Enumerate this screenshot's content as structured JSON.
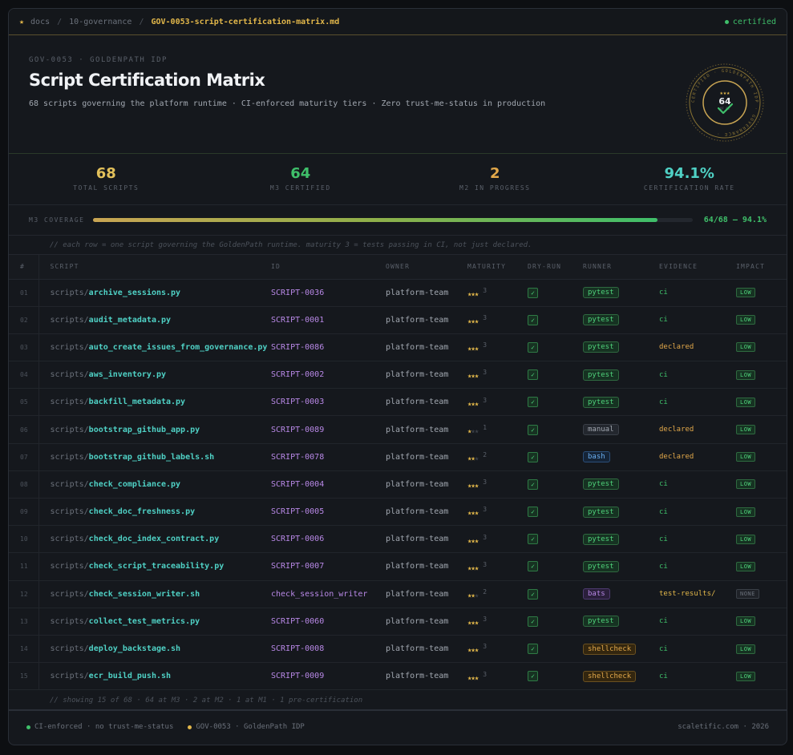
{
  "breadcrumb": {
    "items": [
      "docs",
      "10-governance"
    ],
    "current": "GOV-0053-script-certification-matrix.md",
    "status": "certified"
  },
  "header": {
    "eyebrow": "GOV-0053 · GOLDENPATH IDP",
    "title": "Script Certification Matrix",
    "subtitle": "68 scripts governing the platform runtime · CI-enforced maturity tiers · Zero trust-me-status in production"
  },
  "seal": {
    "ring_text": "CERTIFIED · GOLDENPATH IDP · GOVERNANCE ·",
    "stars": "★★★",
    "count": "64",
    "of": "OF 68"
  },
  "stats": [
    {
      "value": "68",
      "label": "TOTAL SCRIPTS",
      "color": "#e2c05a"
    },
    {
      "value": "64",
      "label": "M3 CERTIFIED",
      "color": "#3fbf6a"
    },
    {
      "value": "2",
      "label": "M2 IN PROGRESS",
      "color": "#e2a84a"
    },
    {
      "value": "94.1%",
      "label": "CERTIFICATION RATE",
      "color": "#4fd1c5"
    }
  ],
  "coverage": {
    "label": "M3 COVERAGE",
    "fraction": 0.941,
    "value_text": "64/68 — 94.1%"
  },
  "note": "// each row = one script governing the GoldenPath runtime. maturity 3 = tests passing in CI, not just declared.",
  "columns": [
    "#",
    "SCRIPT",
    "ID",
    "OWNER",
    "MATURITY",
    "DRY-RUN",
    "RUNNER",
    "EVIDENCE",
    "IMPACT"
  ],
  "rows": [
    {
      "n": "01",
      "prefix": "scripts/",
      "file": "archive_sessions.py",
      "id": "SCRIPT-0036",
      "owner": "platform-team",
      "maturity": 3,
      "runner": "pytest",
      "evidence": "ci",
      "impact": "LOW"
    },
    {
      "n": "02",
      "prefix": "scripts/",
      "file": "audit_metadata.py",
      "id": "SCRIPT-0001",
      "owner": "platform-team",
      "maturity": 3,
      "runner": "pytest",
      "evidence": "ci",
      "impact": "LOW"
    },
    {
      "n": "03",
      "prefix": "scripts/",
      "file": "auto_create_issues_from_governance.py",
      "id": "SCRIPT-0086",
      "owner": "platform-team",
      "maturity": 3,
      "runner": "pytest",
      "evidence": "declared",
      "impact": "LOW"
    },
    {
      "n": "04",
      "prefix": "scripts/",
      "file": "aws_inventory.py",
      "id": "SCRIPT-0002",
      "owner": "platform-team",
      "maturity": 3,
      "runner": "pytest",
      "evidence": "ci",
      "impact": "LOW"
    },
    {
      "n": "05",
      "prefix": "scripts/",
      "file": "backfill_metadata.py",
      "id": "SCRIPT-0003",
      "owner": "platform-team",
      "maturity": 3,
      "runner": "pytest",
      "evidence": "ci",
      "impact": "LOW"
    },
    {
      "n": "06",
      "prefix": "scripts/",
      "file": "bootstrap_github_app.py",
      "id": "SCRIPT-0089",
      "owner": "platform-team",
      "maturity": 1,
      "runner": "manual",
      "evidence": "declared",
      "impact": "LOW"
    },
    {
      "n": "07",
      "prefix": "scripts/",
      "file": "bootstrap_github_labels.sh",
      "id": "SCRIPT-0078",
      "owner": "platform-team",
      "maturity": 2,
      "runner": "bash",
      "evidence": "declared",
      "impact": "LOW"
    },
    {
      "n": "08",
      "prefix": "scripts/",
      "file": "check_compliance.py",
      "id": "SCRIPT-0004",
      "owner": "platform-team",
      "maturity": 3,
      "runner": "pytest",
      "evidence": "ci",
      "impact": "LOW"
    },
    {
      "n": "09",
      "prefix": "scripts/",
      "file": "check_doc_freshness.py",
      "id": "SCRIPT-0005",
      "owner": "platform-team",
      "maturity": 3,
      "runner": "pytest",
      "evidence": "ci",
      "impact": "LOW"
    },
    {
      "n": "10",
      "prefix": "scripts/",
      "file": "check_doc_index_contract.py",
      "id": "SCRIPT-0006",
      "owner": "platform-team",
      "maturity": 3,
      "runner": "pytest",
      "evidence": "ci",
      "impact": "LOW"
    },
    {
      "n": "11",
      "prefix": "scripts/",
      "file": "check_script_traceability.py",
      "id": "SCRIPT-0007",
      "owner": "platform-team",
      "maturity": 3,
      "runner": "pytest",
      "evidence": "ci",
      "impact": "LOW"
    },
    {
      "n": "12",
      "prefix": "scripts/",
      "file": "check_session_writer.sh",
      "id": "check_session_writer",
      "owner": "platform-team",
      "maturity": 2,
      "runner": "bats",
      "evidence": "test-results/",
      "impact": "NONE"
    },
    {
      "n": "13",
      "prefix": "scripts/",
      "file": "collect_test_metrics.py",
      "id": "SCRIPT-0060",
      "owner": "platform-team",
      "maturity": 3,
      "runner": "pytest",
      "evidence": "ci",
      "impact": "LOW"
    },
    {
      "n": "14",
      "prefix": "scripts/",
      "file": "deploy_backstage.sh",
      "id": "SCRIPT-0008",
      "owner": "platform-team",
      "maturity": 3,
      "runner": "shellcheck",
      "evidence": "ci",
      "impact": "LOW"
    },
    {
      "n": "15",
      "prefix": "scripts/",
      "file": "ecr_build_push.sh",
      "id": "SCRIPT-0009",
      "owner": "platform-team",
      "maturity": 3,
      "runner": "shellcheck",
      "evidence": "ci",
      "impact": "LOW"
    }
  ],
  "table_footer": "// showing 15 of 68 · 64 at M3 · 2 at M2 · 1 at M1 · 1 pre-certification",
  "footer": {
    "left1": "CI-enforced · no trust-me-status",
    "left2": "GOV-0053 · GoldenPath IDP",
    "right": "scaletific.com · 2026"
  }
}
